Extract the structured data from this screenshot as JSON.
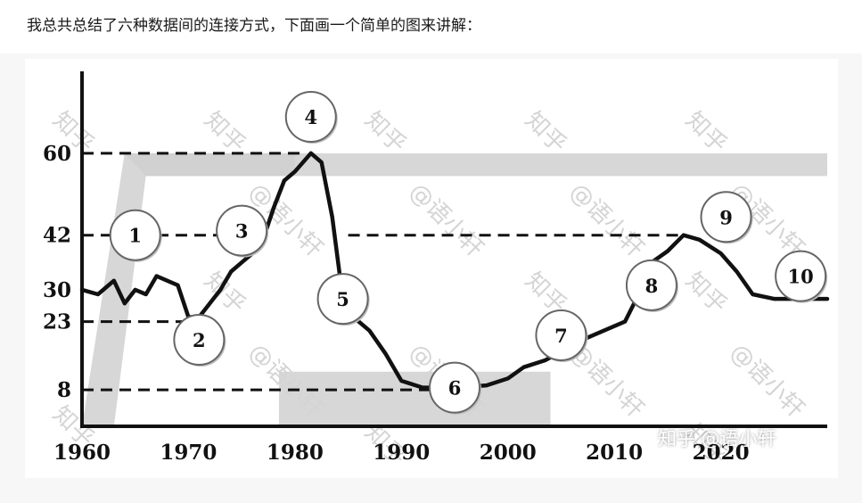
{
  "intro_text": "我总共总结了六种数据间的连接方式，下面画一个简单的图来讲解：",
  "watermark_text": "知乎 @语小轩",
  "chart_data": {
    "type": "line",
    "x_ticks": [
      1960,
      1970,
      1980,
      1990,
      2000,
      2010,
      2020
    ],
    "y_ticks": [
      8,
      23,
      30,
      42,
      60
    ],
    "xlim": [
      1960,
      2030
    ],
    "ylim": [
      0,
      78
    ],
    "grid": false,
    "series": [
      {
        "x": [
          1960,
          1961.5,
          1963,
          1964,
          1965,
          1966,
          1967,
          1968,
          1969,
          1970,
          1971,
          1972,
          1973,
          1974,
          1975,
          1976,
          1977,
          1978,
          1979,
          1980,
          1981.5,
          1982.5,
          1983.5,
          1984.5,
          1985.5,
          1987,
          1988.5,
          1990,
          1992,
          1995,
          1998,
          2000,
          2001.5,
          2003.5,
          2005.5,
          2007,
          2009,
          2011,
          2012.5,
          2013.5,
          2015,
          2016.5,
          2018,
          2020,
          2021.5,
          2023,
          2025,
          2027,
          2030
        ],
        "y": [
          30,
          29,
          32,
          27,
          30,
          29,
          33,
          32,
          31,
          24,
          24,
          27,
          30,
          34,
          36,
          38,
          41,
          48,
          54,
          56,
          60,
          58,
          46,
          28,
          24,
          21,
          16,
          10,
          8.5,
          8.5,
          9,
          10.5,
          13,
          14.5,
          17,
          19,
          21,
          23,
          30,
          36,
          38.5,
          42,
          41,
          38,
          34,
          29,
          28,
          28,
          28
        ]
      }
    ],
    "references": [
      {
        "y": 60,
        "x_start": 1960,
        "x_end": 1981
      },
      {
        "y": 42,
        "x_start": 1960,
        "x_end": 1975
      },
      {
        "y": 42,
        "x_start": 1985,
        "x_end": 2016
      },
      {
        "y": 23,
        "x_start": 1960,
        "x_end": 1970
      },
      {
        "y": 8,
        "x_start": 1960,
        "x_end": 1993
      }
    ],
    "shaded_bands": [
      {
        "x_points": [
          1960,
          1964,
          1978,
          1980,
          1980,
          1966,
          1963,
          1960
        ],
        "y_points": [
          0,
          60,
          60,
          60,
          55,
          55,
          0,
          0
        ]
      },
      {
        "x_points": [
          1964,
          2030,
          2030,
          1966
        ],
        "y_points": [
          60,
          60,
          55,
          55
        ]
      },
      {
        "x_points": [
          1978.5,
          2004,
          2004,
          1978.5
        ],
        "y_points": [
          0,
          0,
          12,
          12
        ]
      }
    ],
    "markers": [
      {
        "label": "1",
        "x": 1965,
        "y": 42
      },
      {
        "label": "2",
        "x": 1971,
        "y": 19
      },
      {
        "label": "3",
        "x": 1975,
        "y": 43
      },
      {
        "label": "4",
        "x": 1981.5,
        "y": 68
      },
      {
        "label": "5",
        "x": 1984.5,
        "y": 28
      },
      {
        "label": "6",
        "x": 1995,
        "y": 8.5
      },
      {
        "label": "7",
        "x": 2005,
        "y": 20
      },
      {
        "label": "8",
        "x": 2013.5,
        "y": 31
      },
      {
        "label": "9",
        "x": 2020.5,
        "y": 46
      },
      {
        "label": "10",
        "x": 2027.5,
        "y": 33
      }
    ],
    "colors": {
      "line": "#111111",
      "band": "#d0d0d0",
      "marker_fill": "#ffffff"
    }
  }
}
